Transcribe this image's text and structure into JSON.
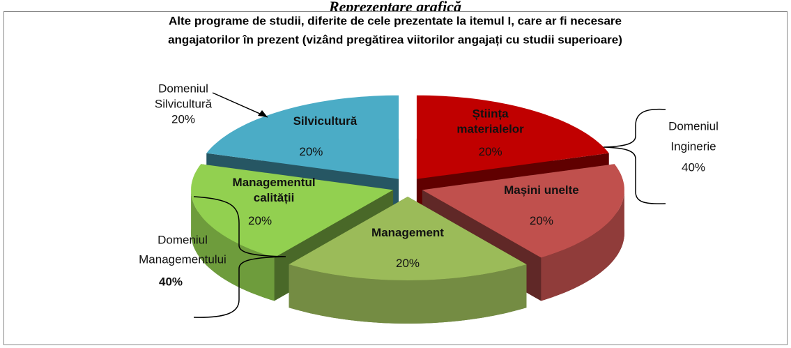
{
  "page_heading": "Reprezentare grafică",
  "chart_data": {
    "type": "pie3d",
    "title": [
      "Alte programe de studii, diferite de cele prezentate la itemul I, care ar fi necesare",
      "angajatorilor în prezent (vizând pregătirea viitorilor angajați cu studii superioare)"
    ],
    "categories": [
      "Știința materialelor",
      "Mașini unelte",
      "Management",
      "Managementul calității",
      "Silvicultură"
    ],
    "values": [
      20,
      20,
      20,
      20,
      20
    ],
    "value_labels": [
      "20%",
      "20%",
      "20%",
      "20%",
      "20%"
    ],
    "colors": [
      "#c00000",
      "#c0504d",
      "#9bbb59",
      "#92d050",
      "#4bacc6"
    ],
    "annotations": [
      {
        "lines": [
          "Domeniul",
          "Silvicultură",
          "20%"
        ]
      },
      {
        "lines": [
          "Domeniul",
          "Inginerie",
          "40%"
        ]
      },
      {
        "lines": [
          "Domeniul",
          "Managementului",
          "40%"
        ]
      }
    ]
  }
}
